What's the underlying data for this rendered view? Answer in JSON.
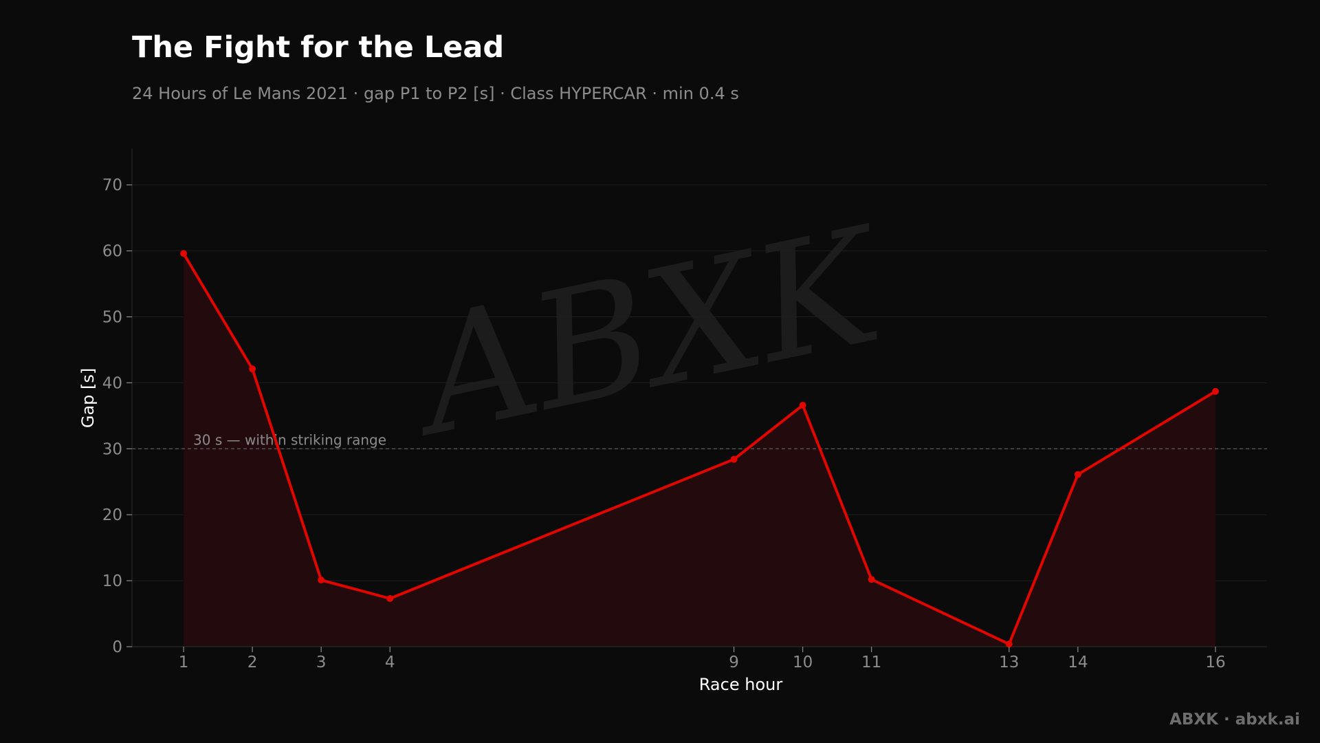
{
  "header": {
    "title": "The Fight for the Lead",
    "subtitle": "24 Hours of Le Mans 2021 · gap P1 to P2 [s] · Class HYPERCAR · min 0.4 s"
  },
  "watermark": {
    "text": "ABXK"
  },
  "footer": {
    "brand": "ABXK · abxk.ai"
  },
  "colors": {
    "background": "#0b0b0b",
    "series": "#e10600",
    "area_fill": "#260a0c",
    "grid": "#1e1e1e",
    "tick_text": "#8c8c8c",
    "reference_line": "#555555"
  },
  "chart_data": {
    "type": "area",
    "title": "The Fight for the Lead",
    "subtitle": "24 Hours of Le Mans 2021 · gap P1 to P2 [s] · Class HYPERCAR · min 0.4 s",
    "xlabel": "Race hour",
    "ylabel": "Gap [s]",
    "x": [
      1,
      2,
      3,
      4,
      9,
      10,
      11,
      13,
      14,
      16
    ],
    "series": [
      {
        "name": "",
        "values": [
          59.6,
          42.1,
          10.1,
          7.3,
          28.4,
          36.6,
          10.2,
          0.4,
          26.1,
          38.7
        ]
      }
    ],
    "xticks": [
      1,
      2,
      3,
      4,
      9,
      10,
      11,
      13,
      14,
      16
    ],
    "yticks": [
      0,
      10,
      20,
      30,
      40,
      50,
      60,
      70
    ],
    "xlim": [
      0.25,
      16.75
    ],
    "ylim": [
      0,
      75.5
    ],
    "grid": true,
    "reference_line": {
      "y": 30,
      "label": "30 s — within striking range"
    }
  }
}
